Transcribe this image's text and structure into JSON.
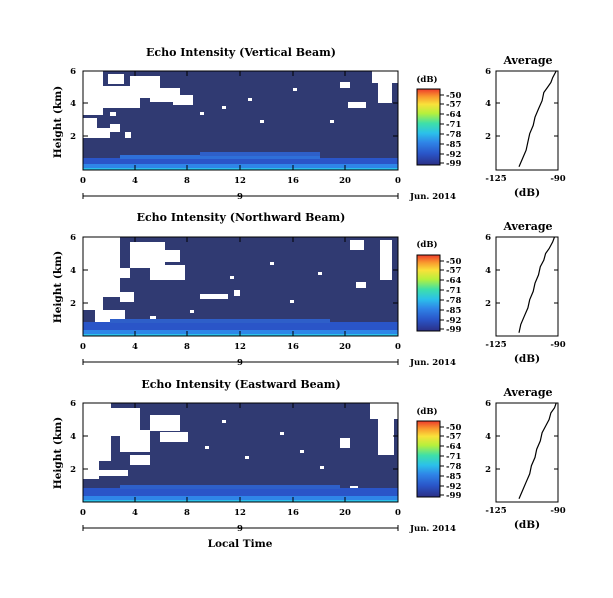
{
  "chart_data": [
    {
      "type": "heatmap",
      "title": "Echo Intensity (Vertical Beam)",
      "ylabel": "Height (km)",
      "yticks": [
        "6",
        "4",
        "2"
      ],
      "xticks": [
        "0",
        "4",
        "8",
        "12",
        "16",
        "20",
        "0"
      ],
      "date_marker": "9",
      "date_label": "Jun. 2014",
      "xlim": [
        0,
        24
      ],
      "ylim": [
        0,
        6
      ],
      "colorbar": {
        "unit": "(dB)",
        "ticks": [
          "-50",
          "-57",
          "-64",
          "-71",
          "-78",
          "-85",
          "-92",
          "-99"
        ],
        "range": [
          -99,
          -50
        ]
      },
      "profile": {
        "title": "Average",
        "xlabel": "(dB)",
        "xticks": [
          "-125",
          "-90"
        ],
        "yticks": [
          "6",
          "4",
          "2"
        ],
        "xlim": [
          -125,
          -90
        ],
        "ylim": [
          0,
          6
        ],
        "x": [
          -112,
          -110,
          -108,
          -107,
          -106,
          -104,
          -103,
          -101,
          -99,
          -98,
          -96,
          -94,
          -93,
          -91
        ],
        "y": [
          0.2,
          0.7,
          1.2,
          1.7,
          2.2,
          2.7,
          3.2,
          3.7,
          4.2,
          4.7,
          5.0,
          5.3,
          5.6,
          6.0
        ]
      }
    },
    {
      "type": "heatmap",
      "title": "Echo Intensity (Northward Beam)",
      "ylabel": "Height (km)",
      "yticks": [
        "6",
        "4",
        "2"
      ],
      "xticks": [
        "0",
        "4",
        "8",
        "12",
        "16",
        "20",
        "0"
      ],
      "date_marker": "9",
      "date_label": "Jun. 2014",
      "xlim": [
        0,
        24
      ],
      "ylim": [
        0,
        6
      ],
      "colorbar": {
        "unit": "(dB)",
        "ticks": [
          "-50",
          "-57",
          "-64",
          "-71",
          "-78",
          "-85",
          "-92",
          "-99"
        ],
        "range": [
          -99,
          -50
        ]
      },
      "profile": {
        "title": "Average",
        "xlabel": "(dB)",
        "xticks": [
          "-125",
          "-90"
        ],
        "yticks": [
          "6",
          "4",
          "2"
        ],
        "xlim": [
          -125,
          -90
        ],
        "ylim": [
          0,
          6
        ],
        "x": [
          -112,
          -111,
          -109,
          -107,
          -106,
          -104,
          -103,
          -101,
          -100,
          -98,
          -97,
          -95,
          -93,
          -92
        ],
        "y": [
          0.2,
          0.7,
          1.2,
          1.7,
          2.2,
          2.7,
          3.2,
          3.7,
          4.2,
          4.6,
          5.0,
          5.3,
          5.7,
          6.0
        ]
      }
    },
    {
      "type": "heatmap",
      "title": "Echo Intensity (Eastward Beam)",
      "ylabel": "Height (km)",
      "yticks": [
        "6",
        "4",
        "2"
      ],
      "xticks": [
        "0",
        "4",
        "8",
        "12",
        "16",
        "20",
        "0"
      ],
      "date_marker": "9",
      "date_label": "Jun. 2014",
      "xlabel": "Local Time",
      "xlim": [
        0,
        24
      ],
      "ylim": [
        0,
        6
      ],
      "colorbar": {
        "unit": "(dB)",
        "ticks": [
          "-50",
          "-57",
          "-64",
          "-71",
          "-78",
          "-85",
          "-92",
          "-99"
        ],
        "range": [
          -99,
          -50
        ]
      },
      "profile": {
        "title": "Average",
        "xlabel": "(dB)",
        "xticks": [
          "-125",
          "-90"
        ],
        "yticks": [
          "6",
          "4",
          "2"
        ],
        "xlim": [
          -125,
          -90
        ],
        "ylim": [
          0,
          6
        ],
        "x": [
          -112,
          -110,
          -108,
          -106,
          -105,
          -103,
          -102,
          -100,
          -99,
          -97,
          -95,
          -94,
          -92,
          -91
        ],
        "y": [
          0.2,
          0.7,
          1.2,
          1.7,
          2.2,
          2.7,
          3.2,
          3.7,
          4.2,
          4.6,
          5.0,
          5.4,
          5.7,
          6.0
        ]
      }
    }
  ],
  "colors": {
    "background_echo": "#303a72",
    "missing": "#ffffff",
    "colormap": [
      "#2b2f86",
      "#2a55c8",
      "#2f86e8",
      "#2bc1ea",
      "#3fe0a8",
      "#b6f03c",
      "#f9e13a",
      "#f99a2e",
      "#ee3b2b"
    ]
  }
}
